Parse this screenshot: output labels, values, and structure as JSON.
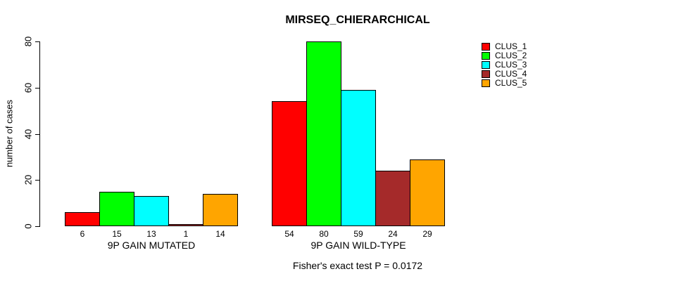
{
  "title": "MIRSEQ_CHIERARCHICAL",
  "chart_data": {
    "type": "bar",
    "title": "MIRSEQ_CHIERARCHICAL",
    "ylabel": "number of cases",
    "xlabel": "",
    "ylim": [
      0,
      80
    ],
    "yticks": [
      0,
      20,
      40,
      60,
      80
    ],
    "grid": false,
    "legend_position": "right",
    "categories": [
      "9P GAIN MUTATED",
      "9P GAIN WILD-TYPE"
    ],
    "series": [
      {
        "name": "CLUS_1",
        "color": "#FF0000",
        "values": [
          6,
          54
        ]
      },
      {
        "name": "CLUS_2",
        "color": "#00FF00",
        "values": [
          15,
          80
        ]
      },
      {
        "name": "CLUS_3",
        "color": "#00FFFF",
        "values": [
          13,
          59
        ]
      },
      {
        "name": "CLUS_4",
        "color": "#A52A2A",
        "values": [
          1,
          24
        ]
      },
      {
        "name": "CLUS_5",
        "color": "#FFA500",
        "values": [
          14,
          29
        ]
      }
    ],
    "bar_value_labels": {
      "9P GAIN MUTATED": [
        6,
        15,
        13,
        1,
        14
      ],
      "9P GAIN WILD-TYPE": [
        54,
        80,
        59,
        24,
        29
      ]
    },
    "annotation": "Fisher's exact test P = 0.0172"
  }
}
